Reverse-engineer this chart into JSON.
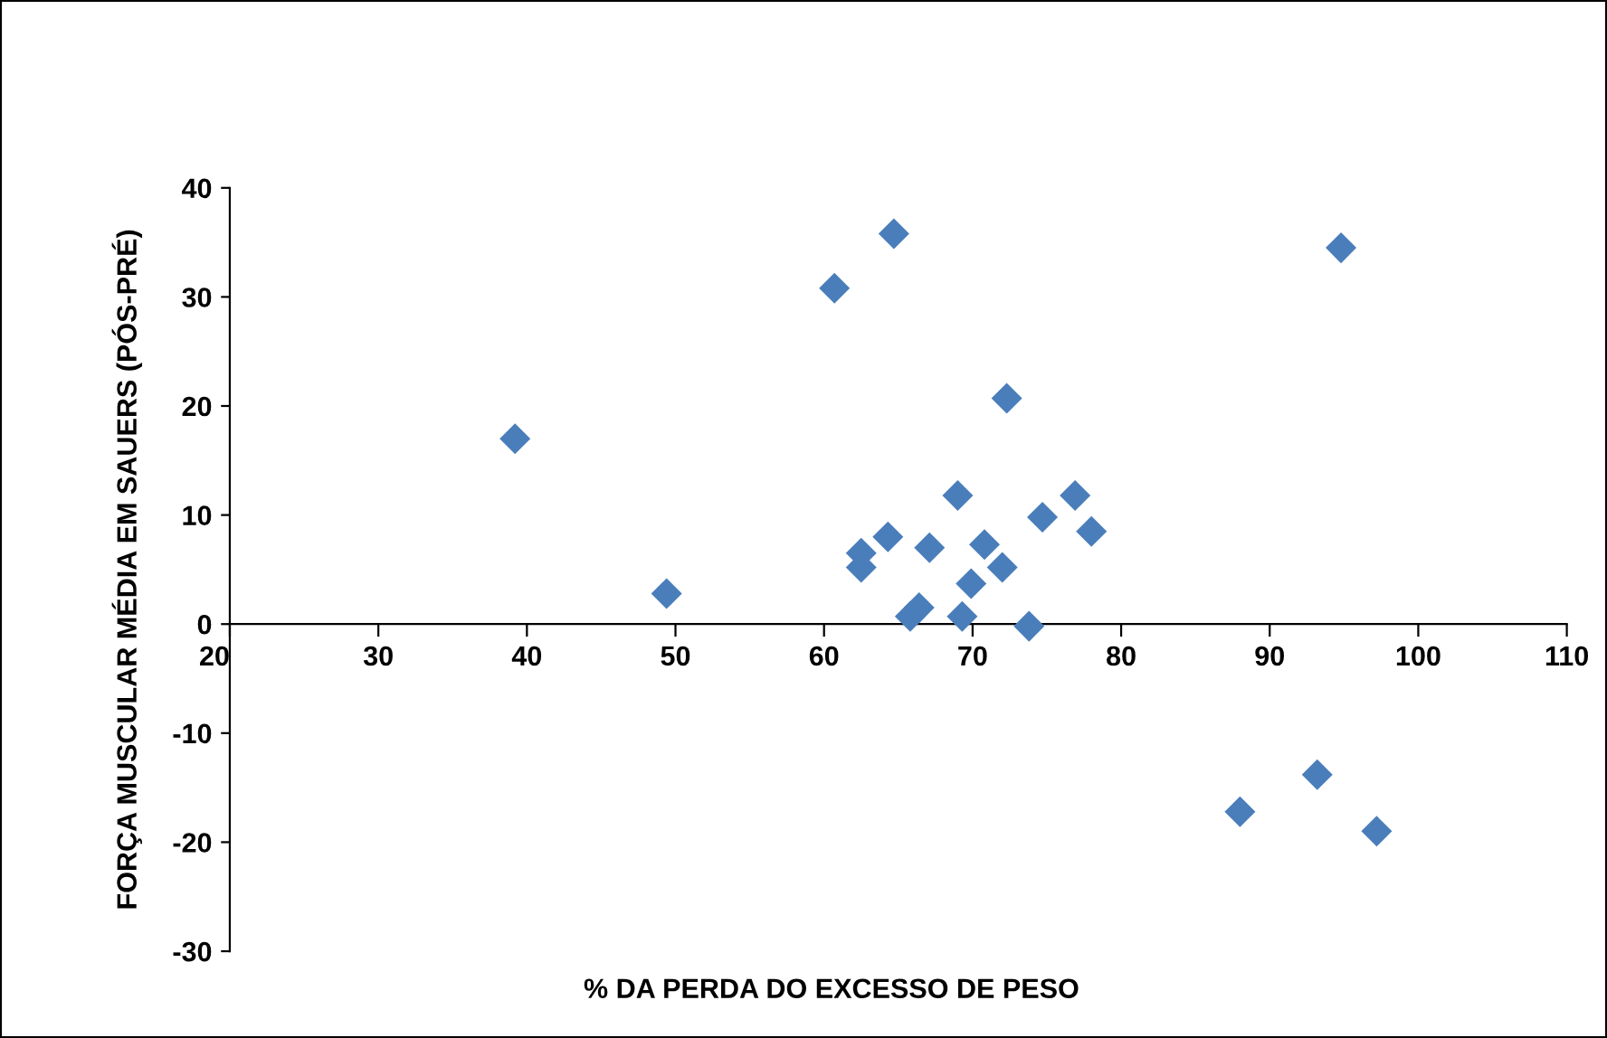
{
  "chart_data": {
    "type": "scatter",
    "xlabel": "% DA PERDA DO EXCESSO DE PESO",
    "ylabel": "FORÇA MUSCULAR MÉDIA EM SAUERS (PÓS-PRÉ)",
    "x": [
      39.2,
      49.4,
      60.7,
      64.7,
      62.5,
      62.5,
      64.3,
      67.1,
      65.8,
      66.4,
      69.0,
      69.3,
      69.9,
      70.8,
      72.0,
      72.3,
      73.8,
      74.7,
      76.9,
      78.0,
      88.0,
      93.2,
      94.8,
      97.2
    ],
    "values": [
      17.0,
      2.8,
      30.8,
      35.8,
      6.5,
      5.2,
      8.0,
      7.0,
      0.7,
      1.5,
      11.8,
      0.7,
      3.7,
      7.3,
      5.2,
      20.7,
      -0.2,
      9.8,
      11.8,
      8.5,
      -17.2,
      -13.8,
      34.5,
      -19.0
    ],
    "color": "#4a7ebb",
    "marker": "diamond",
    "grid": false,
    "xlim": [
      20,
      110
    ],
    "xticks": [
      20,
      30,
      40,
      50,
      60,
      70,
      80,
      90,
      100,
      110
    ],
    "ylim": [
      -30,
      40
    ],
    "yticks": [
      -30,
      -20,
      -10,
      0,
      10,
      20,
      30,
      40
    ]
  }
}
